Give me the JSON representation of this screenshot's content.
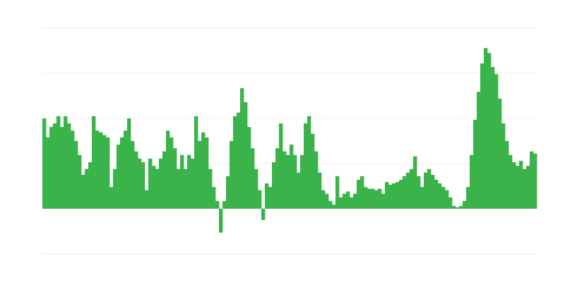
{
  "chart_data": {
    "type": "bar",
    "color": "#3ab34a",
    "grid": true,
    "ylim": [
      -1,
      4
    ],
    "yticks": [
      -1,
      0,
      1,
      2,
      3,
      4
    ],
    "values": [
      2.0,
      1.58,
      1.81,
      1.89,
      2.05,
      1.81,
      2.05,
      1.89,
      1.73,
      1.5,
      1.19,
      0.75,
      0.88,
      1.03,
      2.05,
      1.73,
      1.69,
      1.63,
      1.58,
      0.48,
      0.88,
      1.42,
      1.58,
      1.73,
      2.0,
      1.5,
      1.27,
      1.11,
      1.03,
      0.41,
      1.11,
      0.95,
      0.88,
      1.11,
      1.27,
      1.73,
      1.58,
      1.34,
      0.88,
      1.19,
      0.88,
      1.19,
      1.11,
      2.05,
      1.5,
      1.69,
      1.58,
      0.88,
      0.48,
      0.17,
      -0.53,
      0.17,
      0.72,
      1.5,
      2.05,
      2.13,
      2.67,
      2.36,
      1.81,
      1.34,
      0.88,
      0.41,
      -0.25,
      0.56,
      0.48,
      1.03,
      1.34,
      1.89,
      1.27,
      1.19,
      1.42,
      1.19,
      0.8,
      1.19,
      1.89,
      2.05,
      1.66,
      1.27,
      0.8,
      0.41,
      0.33,
      0.17,
      0.09,
      0.72,
      0.25,
      0.33,
      0.38,
      0.25,
      0.33,
      0.64,
      0.72,
      0.48,
      0.44,
      0.44,
      0.41,
      0.44,
      0.33,
      0.59,
      0.53,
      0.56,
      0.59,
      0.64,
      0.72,
      0.8,
      0.88,
      1.16,
      0.72,
      0.48,
      0.8,
      0.88,
      0.75,
      0.64,
      0.56,
      0.48,
      0.41,
      0.25,
      0.06,
      0.03,
      0.06,
      0.17,
      0.48,
      1.19,
      1.97,
      2.59,
      3.22,
      3.56,
      3.45,
      3.14,
      2.98,
      2.44,
      1.89,
      1.5,
      1.19,
      1.03,
      0.95,
      1.06,
      0.88,
      0.95,
      1.27,
      1.22
    ]
  }
}
